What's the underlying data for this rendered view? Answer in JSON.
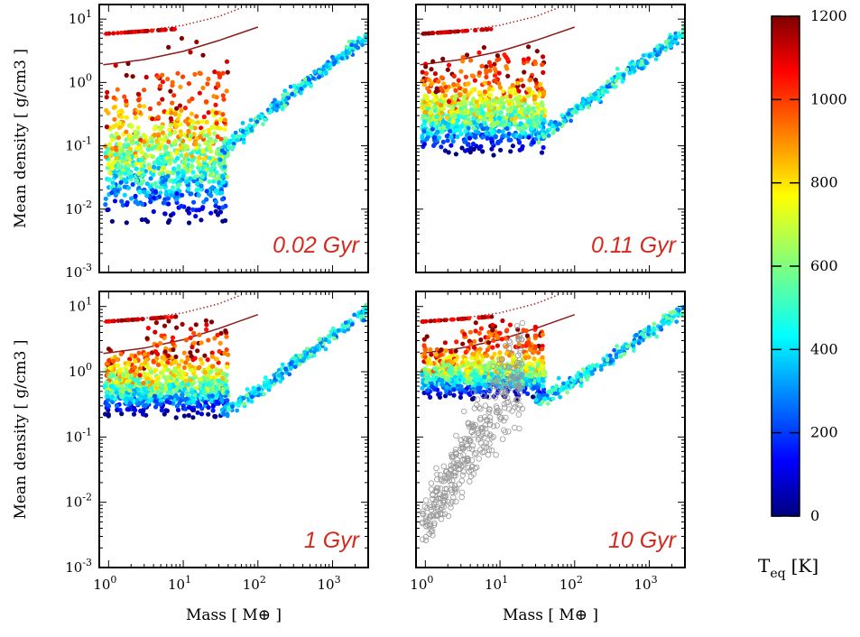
{
  "figure": {
    "x_axis_label": "Mass [ M⊕ ]",
    "y_axis_label": "Mean density [ g/cm3 ]",
    "colorbar": {
      "title": "T",
      "title_sub": "eq",
      "title_unit": "[K]",
      "range": [
        0,
        1200
      ],
      "ticks": [
        "0",
        "200",
        "400",
        "600",
        "800",
        "1000",
        "1200"
      ],
      "colormap": "jet"
    }
  },
  "chart_data": [
    {
      "type": "scatter",
      "panel": "top-left",
      "age_label": "0.02 Gyr",
      "xscale": "log",
      "yscale": "log",
      "xlim": [
        0.75,
        3000
      ],
      "ylim": [
        0.001,
        17
      ],
      "x_ticks": [
        "0",
        "1",
        "2",
        "3"
      ],
      "y_ticks": [
        "-3",
        "-2",
        "-1",
        "0",
        "1"
      ],
      "description": "Simulated planets colored by equilibrium temperature; density at low mass spans 0.003–3 g/cm3",
      "low_mass_density_range": [
        0.003,
        3.0
      ],
      "giant_branch": [
        [
          30,
          0.07
        ],
        [
          100,
          0.25
        ],
        [
          300,
          0.7
        ],
        [
          1000,
          2.0
        ],
        [
          3000,
          5.5
        ]
      ],
      "reference_curves": {
        "dotted": [
          [
            0.85,
            5.8
          ],
          [
            3,
            6.6
          ],
          [
            10,
            8
          ],
          [
            30,
            11
          ],
          [
            60,
            15
          ]
        ],
        "solid": [
          [
            0.85,
            1.9
          ],
          [
            3,
            2.3
          ],
          [
            10,
            3.1
          ],
          [
            30,
            4.6
          ],
          [
            100,
            7.5
          ]
        ]
      },
      "grey_points": false
    },
    {
      "type": "scatter",
      "panel": "top-right",
      "age_label": "0.11 Gyr",
      "xscale": "log",
      "yscale": "log",
      "xlim": [
        0.75,
        3000
      ],
      "ylim": [
        0.001,
        17
      ],
      "x_ticks": [
        "0",
        "1",
        "2",
        "3"
      ],
      "y_ticks": [
        "-3",
        "-2",
        "-1",
        "0",
        "1"
      ],
      "description": "Low-mass planets contracted; density spans roughly 0.05–3 g/cm3",
      "low_mass_density_range": [
        0.05,
        3.0
      ],
      "giant_branch": [
        [
          30,
          0.12
        ],
        [
          100,
          0.35
        ],
        [
          300,
          0.9
        ],
        [
          1000,
          2.5
        ],
        [
          3000,
          6.5
        ]
      ],
      "reference_curves": {
        "dotted": [
          [
            0.85,
            5.8
          ],
          [
            3,
            6.6
          ],
          [
            10,
            8
          ],
          [
            30,
            11
          ],
          [
            60,
            15
          ]
        ],
        "solid": [
          [
            0.85,
            1.9
          ],
          [
            3,
            2.3
          ],
          [
            10,
            3.1
          ],
          [
            30,
            4.6
          ],
          [
            100,
            7.5
          ]
        ]
      },
      "grey_points": false
    },
    {
      "type": "scatter",
      "panel": "bottom-left",
      "age_label": "1 Gyr",
      "xscale": "log",
      "yscale": "log",
      "xlim": [
        0.75,
        3000
      ],
      "ylim": [
        0.001,
        17
      ],
      "x_ticks": [
        "0",
        "1",
        "2",
        "3"
      ],
      "y_ticks": [
        "-3",
        "-2",
        "-1",
        "0",
        "1"
      ],
      "description": "Density spans roughly 0.15–4 g/cm3 at low mass",
      "low_mass_density_range": [
        0.15,
        4.0
      ],
      "giant_branch": [
        [
          30,
          0.22
        ],
        [
          100,
          0.5
        ],
        [
          300,
          1.3
        ],
        [
          1000,
          3.5
        ],
        [
          3000,
          9
        ]
      ],
      "reference_curves": {
        "dotted": [
          [
            0.85,
            5.8
          ],
          [
            3,
            6.6
          ],
          [
            10,
            8
          ],
          [
            30,
            11
          ],
          [
            60,
            15
          ]
        ],
        "solid": [
          [
            0.85,
            1.9
          ],
          [
            3,
            2.3
          ],
          [
            10,
            3.1
          ],
          [
            30,
            4.6
          ],
          [
            100,
            7.5
          ]
        ]
      },
      "grey_points": false
    },
    {
      "type": "scatter",
      "panel": "bottom-right",
      "age_label": "10 Gyr",
      "xscale": "log",
      "yscale": "log",
      "xlim": [
        0.75,
        3000
      ],
      "ylim": [
        0.001,
        17
      ],
      "x_ticks": [
        "0",
        "1",
        "2",
        "3"
      ],
      "y_ticks": [
        "-3",
        "-2",
        "-1",
        "0",
        "1"
      ],
      "description": "Colored points at 0.3–4 g/cm3 plus grey open circles (0.004–2 g/cm3) overlaid",
      "low_mass_density_range": [
        0.3,
        4.0
      ],
      "giant_branch": [
        [
          30,
          0.35
        ],
        [
          100,
          0.7
        ],
        [
          300,
          1.6
        ],
        [
          1000,
          4.0
        ],
        [
          3000,
          9.5
        ]
      ],
      "reference_curves": {
        "dotted": [
          [
            0.85,
            5.8
          ],
          [
            3,
            6.6
          ],
          [
            10,
            8
          ],
          [
            30,
            11
          ],
          [
            60,
            15
          ]
        ],
        "solid": [
          [
            0.85,
            1.9
          ],
          [
            3,
            2.3
          ],
          [
            10,
            3.1
          ],
          [
            30,
            4.6
          ],
          [
            100,
            7.5
          ]
        ]
      },
      "grey_points": true,
      "grey_density_range": [
        0.004,
        2.0
      ]
    }
  ]
}
